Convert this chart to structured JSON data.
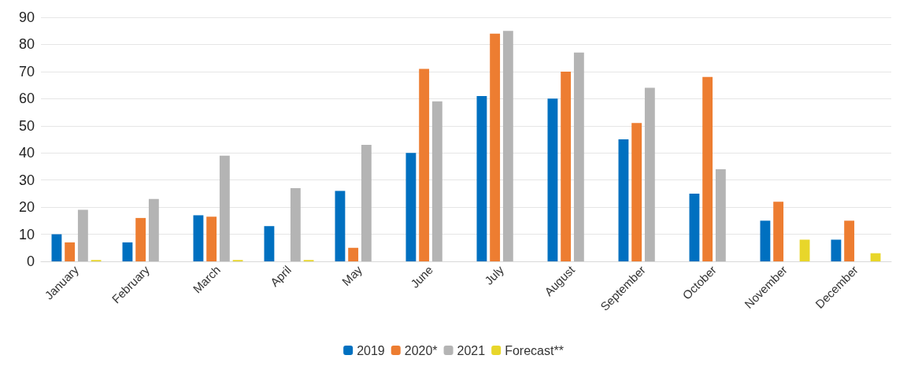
{
  "chart_data": {
    "type": "bar",
    "categories": [
      "January",
      "February",
      "March",
      "April",
      "May",
      "June",
      "July",
      "August",
      "September",
      "October",
      "November",
      "December"
    ],
    "series": [
      {
        "name": "2019",
        "color": "#0070c0",
        "values": [
          10,
          7,
          17,
          13,
          26,
          40,
          61,
          60,
          45,
          25,
          15,
          8
        ]
      },
      {
        "name": "2020*",
        "color": "#ed7d31",
        "values": [
          7,
          16,
          16.5,
          null,
          5,
          71,
          84,
          70,
          51,
          68,
          22,
          15
        ]
      },
      {
        "name": "2021",
        "color": "#b4b4b4",
        "values": [
          19,
          23,
          39,
          27,
          43,
          59,
          85,
          77,
          64,
          34,
          null,
          null
        ]
      },
      {
        "name": "Forecast**",
        "color": "#e8d62a",
        "values": [
          0.5,
          null,
          0.5,
          0.5,
          null,
          null,
          null,
          null,
          null,
          null,
          8,
          3
        ]
      }
    ],
    "ylim": [
      0,
      90
    ],
    "yticks": [
      0,
      10,
      20,
      30,
      40,
      50,
      60,
      70,
      80,
      90
    ],
    "grid": "y",
    "legend": "bottom"
  }
}
